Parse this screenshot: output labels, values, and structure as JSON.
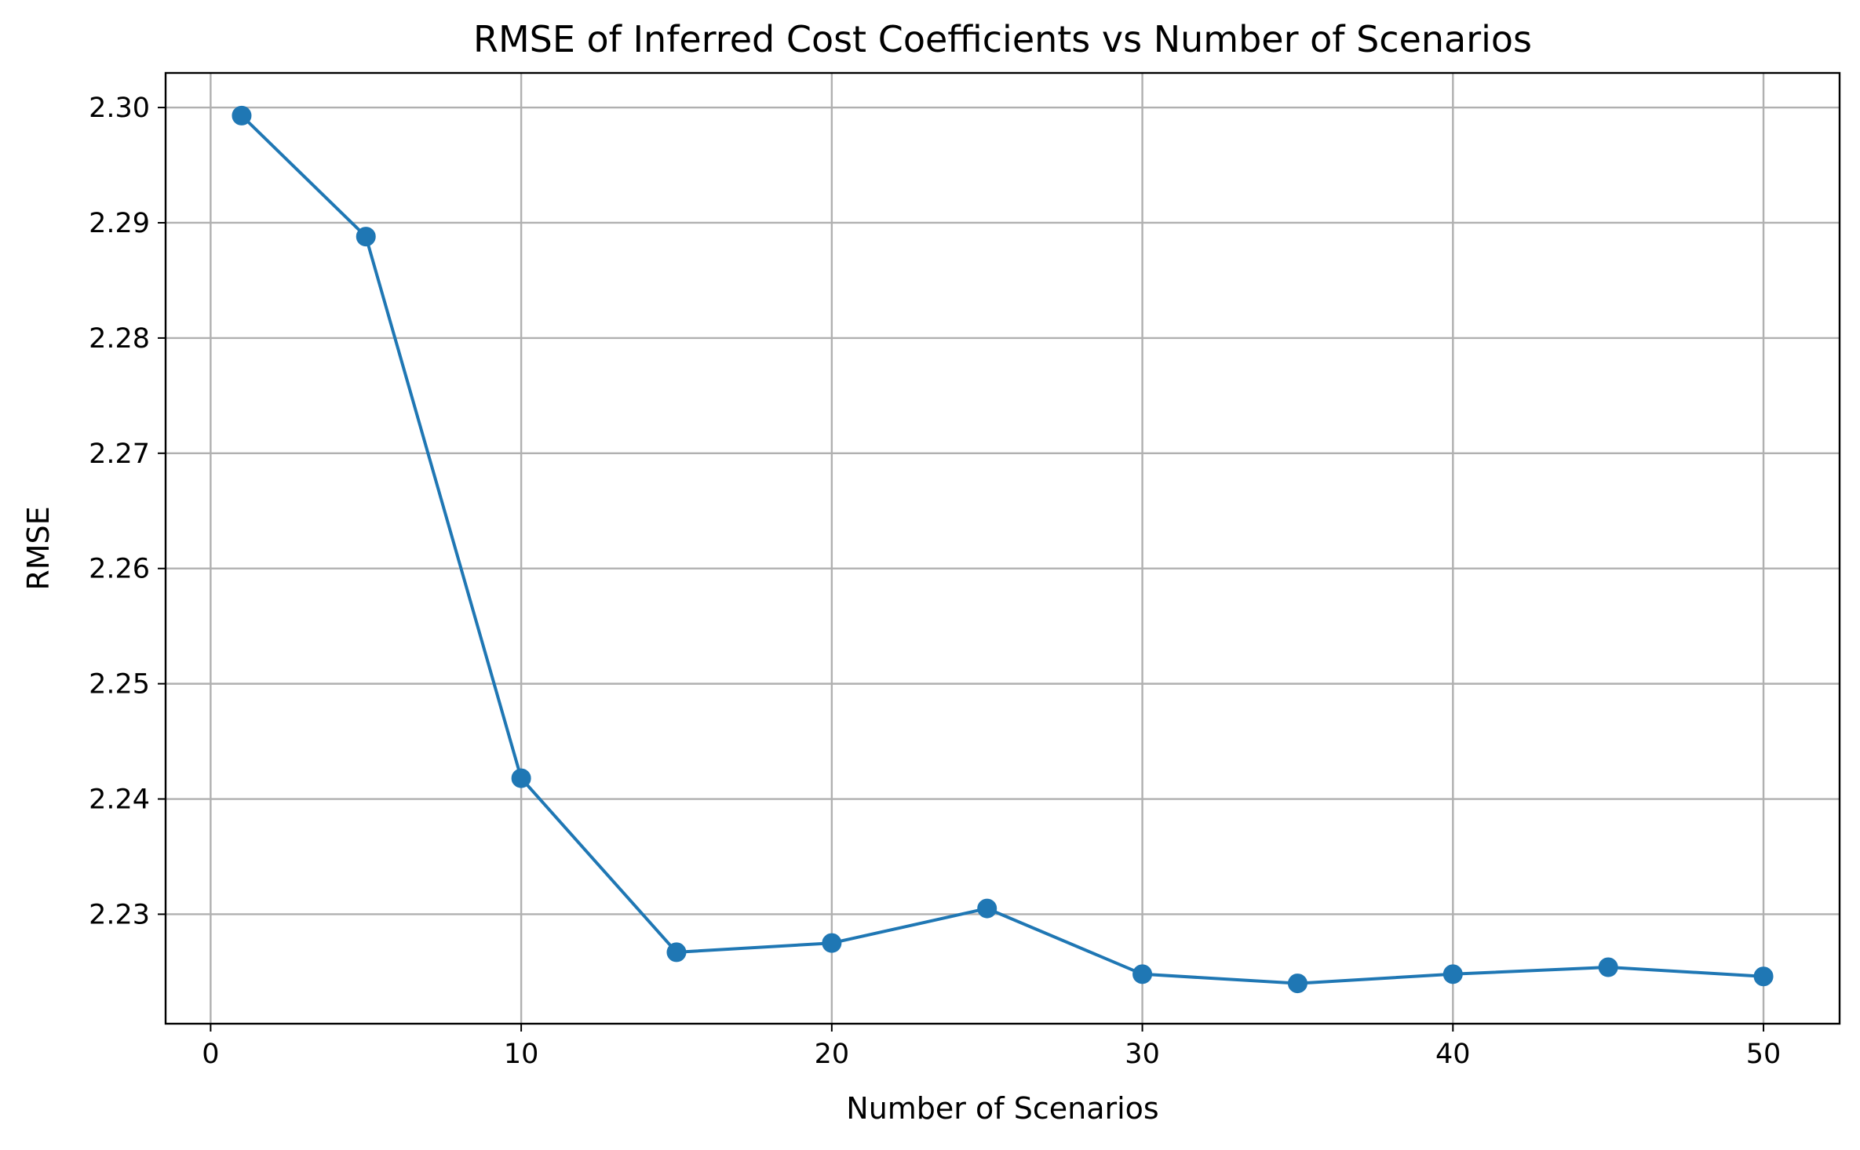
{
  "chart_data": {
    "type": "line",
    "title": "RMSE of Inferred Cost Coefficients vs Number of Scenarios",
    "xlabel": "Number of Scenarios",
    "ylabel": "RMSE",
    "xlim": [
      -1.45,
      52.45
    ],
    "ylim": [
      2.2205,
      2.303
    ],
    "xticks": [
      0,
      10,
      20,
      30,
      40,
      50
    ],
    "xtick_labels": [
      "0",
      "10",
      "20",
      "30",
      "40",
      "50"
    ],
    "yticks": [
      2.23,
      2.24,
      2.25,
      2.26,
      2.27,
      2.28,
      2.29,
      2.3
    ],
    "ytick_labels": [
      "2.23",
      "2.24",
      "2.25",
      "2.26",
      "2.27",
      "2.28",
      "2.29",
      "2.30"
    ],
    "grid": true,
    "series": [
      {
        "color": "#1f77b4",
        "marker": "circle",
        "x": [
          1,
          5,
          10,
          15,
          20,
          25,
          30,
          35,
          40,
          45,
          50
        ],
        "y": [
          2.2993,
          2.2888,
          2.2418,
          2.2267,
          2.2275,
          2.2305,
          2.2248,
          2.224,
          2.2248,
          2.2254,
          2.2246
        ]
      }
    ]
  }
}
